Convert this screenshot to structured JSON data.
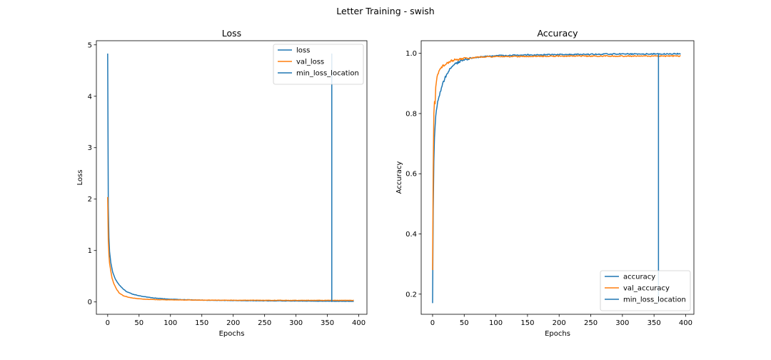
{
  "figure": {
    "suptitle": "Letter Training - swish"
  },
  "colors": {
    "blue": "#1f77b4",
    "orange": "#ff7f0e",
    "axis": "#000000",
    "background": "#ffffff"
  },
  "chart_data": [
    {
      "type": "line",
      "title": "Loss",
      "xlabel": "Epochs",
      "ylabel": "Loss",
      "xlim": [
        -18,
        413
      ],
      "ylim": [
        -0.24,
        5.08
      ],
      "xticks": [
        0,
        50,
        100,
        150,
        200,
        250,
        300,
        350,
        400
      ],
      "yticks": [
        0,
        1,
        2,
        3,
        4,
        5
      ],
      "grid": false,
      "legend_position": "top-right",
      "epochs": 393,
      "series": [
        {
          "name": "loss",
          "color": "#1f77b4",
          "points": [
            [
              0,
              4.83
            ],
            [
              1,
              1.85
            ],
            [
              2,
              1.25
            ],
            [
              3,
              0.98
            ],
            [
              5,
              0.76
            ],
            [
              8,
              0.58
            ],
            [
              12,
              0.45
            ],
            [
              16,
              0.37
            ],
            [
              20,
              0.31
            ],
            [
              25,
              0.25
            ],
            [
              30,
              0.2
            ],
            [
              40,
              0.15
            ],
            [
              50,
              0.12
            ],
            [
              60,
              0.1
            ],
            [
              75,
              0.075
            ],
            [
              100,
              0.052
            ],
            [
              150,
              0.035
            ],
            [
              200,
              0.027
            ],
            [
              250,
              0.022
            ],
            [
              300,
              0.018
            ],
            [
              350,
              0.015
            ],
            [
              392,
              0.013
            ]
          ]
        },
        {
          "name": "val_loss",
          "color": "#ff7f0e",
          "points": [
            [
              0,
              2.04
            ],
            [
              1,
              1.2
            ],
            [
              2,
              0.92
            ],
            [
              3,
              0.75
            ],
            [
              5,
              0.6
            ],
            [
              7,
              0.46
            ],
            [
              10,
              0.35
            ],
            [
              14,
              0.25
            ],
            [
              18,
              0.18
            ],
            [
              25,
              0.12
            ],
            [
              35,
              0.085
            ],
            [
              50,
              0.06
            ],
            [
              75,
              0.045
            ],
            [
              100,
              0.04
            ],
            [
              150,
              0.036
            ],
            [
              200,
              0.033
            ],
            [
              250,
              0.032
            ],
            [
              300,
              0.031
            ],
            [
              350,
              0.031
            ],
            [
              392,
              0.03
            ]
          ]
        },
        {
          "name": "min_loss_location",
          "color": "#1f77b4",
          "points": [
            [
              357,
              0
            ],
            [
              357,
              4.83
            ]
          ]
        }
      ]
    },
    {
      "type": "line",
      "title": "Accuracy",
      "xlabel": "Epochs",
      "ylabel": "Accuracy",
      "xlim": [
        -18,
        413
      ],
      "ylim": [
        0.133,
        1.042
      ],
      "xticks": [
        0,
        50,
        100,
        150,
        200,
        250,
        300,
        350,
        400
      ],
      "yticks": [
        0.2,
        0.4,
        0.6,
        0.8,
        1.0
      ],
      "grid": false,
      "legend_position": "bottom-right",
      "epochs": 393,
      "series": [
        {
          "name": "accuracy",
          "color": "#1f77b4",
          "points": [
            [
              0,
              0.17
            ],
            [
              1,
              0.48
            ],
            [
              2,
              0.64
            ],
            [
              3,
              0.72
            ],
            [
              5,
              0.79
            ],
            [
              8,
              0.84
            ],
            [
              12,
              0.87
            ],
            [
              16,
              0.9
            ],
            [
              20,
              0.92
            ],
            [
              25,
              0.94
            ],
            [
              30,
              0.955
            ],
            [
              40,
              0.97
            ],
            [
              50,
              0.978
            ],
            [
              60,
              0.984
            ],
            [
              75,
              0.988
            ],
            [
              100,
              0.992
            ],
            [
              150,
              0.995
            ],
            [
              200,
              0.996
            ],
            [
              250,
              0.997
            ],
            [
              300,
              0.998
            ],
            [
              350,
              0.998
            ],
            [
              392,
              0.999
            ]
          ]
        },
        {
          "name": "val_accuracy",
          "color": "#ff7f0e",
          "points": [
            [
              0,
              0.28
            ],
            [
              1,
              0.62
            ],
            [
              2,
              0.8
            ],
            [
              3,
              0.84
            ],
            [
              4,
              0.83
            ],
            [
              5,
              0.89
            ],
            [
              7,
              0.92
            ],
            [
              10,
              0.94
            ],
            [
              15,
              0.955
            ],
            [
              20,
              0.965
            ],
            [
              30,
              0.975
            ],
            [
              40,
              0.98
            ],
            [
              60,
              0.985
            ],
            [
              80,
              0.988
            ],
            [
              100,
              0.989
            ],
            [
              150,
              0.99
            ],
            [
              200,
              0.991
            ],
            [
              250,
              0.991
            ],
            [
              300,
              0.991
            ],
            [
              350,
              0.991
            ],
            [
              392,
              0.991
            ]
          ]
        },
        {
          "name": "min_loss_location",
          "color": "#1f77b4",
          "points": [
            [
              357,
              0.17
            ],
            [
              357,
              0.999
            ]
          ]
        }
      ]
    }
  ]
}
